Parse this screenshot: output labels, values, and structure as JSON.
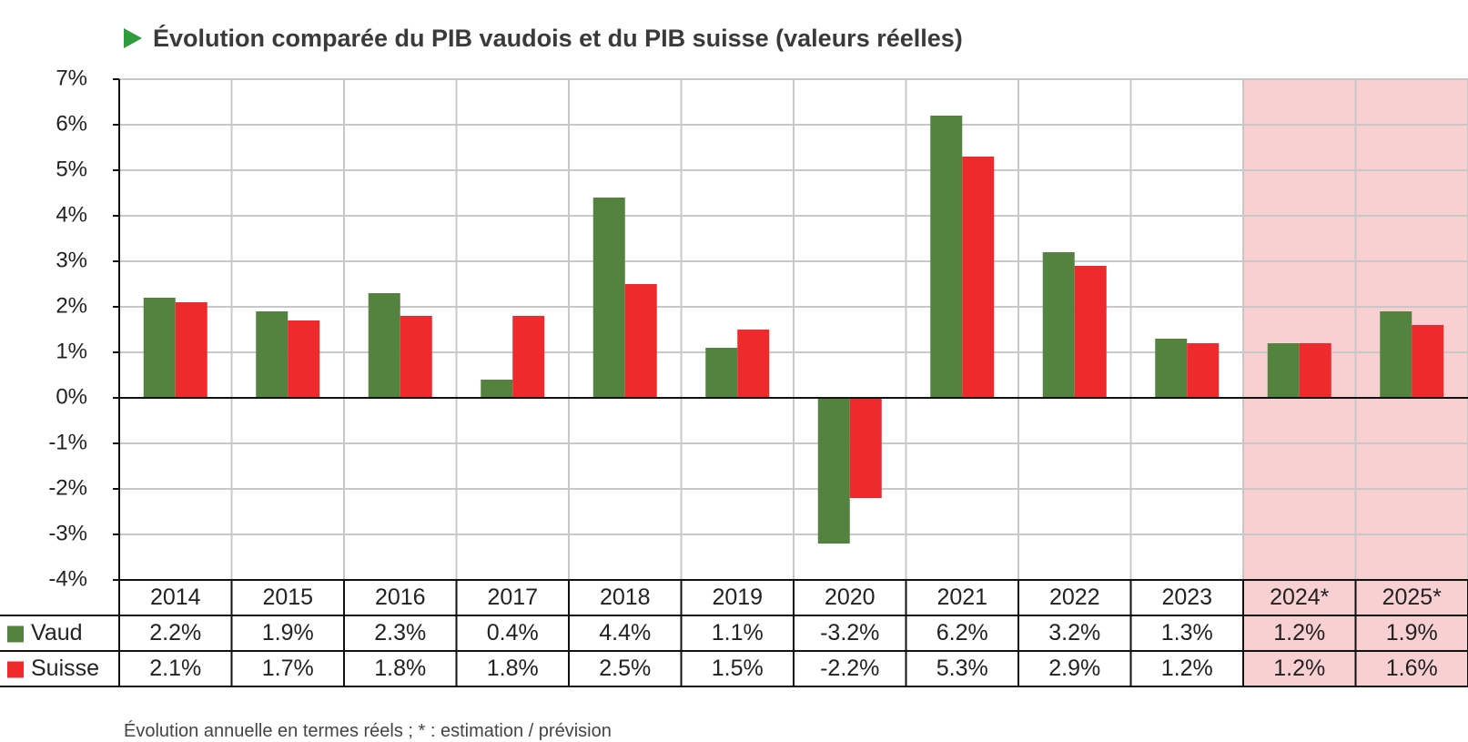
{
  "title": "Évolution comparée du PIB vaudois et du PIB suisse (valeurs réelles)",
  "colors": {
    "vaud": "#548340",
    "suisse": "#ee2a2c",
    "forecast_bg": "#f8d0d1",
    "title_arrow": "#2e9b3c"
  },
  "icons": {
    "title_marker": "triangle-right-icon"
  },
  "chart_data": {
    "type": "bar",
    "categories": [
      "2014",
      "2015",
      "2016",
      "2017",
      "2018",
      "2019",
      "2020",
      "2021",
      "2022",
      "2023",
      "2024*",
      "2025*"
    ],
    "forecast_categories": [
      "2024*",
      "2025*"
    ],
    "series": [
      {
        "name": "Vaud",
        "values": [
          2.2,
          1.9,
          2.3,
          0.4,
          4.4,
          1.1,
          -3.2,
          6.2,
          3.2,
          1.3,
          1.2,
          1.9
        ],
        "labels": [
          "2.2%",
          "1.9%",
          "2.3%",
          "0.4%",
          "4.4%",
          "1.1%",
          "-3.2%",
          "6.2%",
          "3.2%",
          "1.3%",
          "1.2%",
          "1.9%"
        ]
      },
      {
        "name": "Suisse",
        "values": [
          2.1,
          1.7,
          1.8,
          1.8,
          2.5,
          1.5,
          -2.2,
          5.3,
          2.9,
          1.2,
          1.2,
          1.6
        ],
        "labels": [
          "2.1%",
          "1.7%",
          "1.8%",
          "1.8%",
          "2.5%",
          "1.5%",
          "-2.2%",
          "5.3%",
          "2.9%",
          "1.2%",
          "1.2%",
          "1.6%"
        ]
      }
    ],
    "ylim": [
      -4,
      7
    ],
    "yticks": [
      7,
      6,
      5,
      4,
      3,
      2,
      1,
      0,
      -1,
      -2,
      -3,
      -4
    ],
    "ytick_labels": [
      "7%",
      "6%",
      "5%",
      "4%",
      "3%",
      "2%",
      "1%",
      "0%",
      "-1%",
      "-2%",
      "-3%",
      "-4%"
    ],
    "grid": true,
    "legend": "data-table-below"
  },
  "footnote": "Évolution annuelle en termes réels ; * : estimation / prévision"
}
